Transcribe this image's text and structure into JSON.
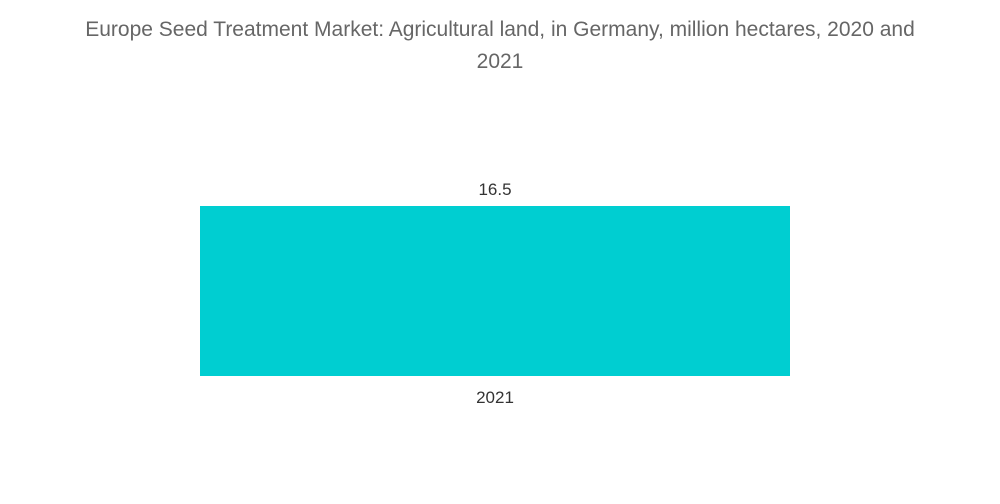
{
  "title_lines": [
    "Europe Seed Treatment Market: Agricultural land, in Germany, million hectares, 2020 and",
    "2021"
  ],
  "chart_data": {
    "type": "bar",
    "title": "Europe Seed Treatment Market: Agricultural land, in Germany, million hectares, 2020 and 2021",
    "categories": [
      "2021"
    ],
    "values": [
      16.5
    ],
    "data_labels": [
      "16.5"
    ],
    "xlabel": "",
    "ylabel": "",
    "grid": false,
    "legend": "none",
    "bar_color": "#00CED1"
  }
}
